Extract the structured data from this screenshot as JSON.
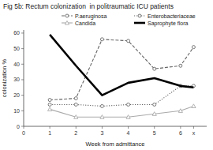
{
  "chart_data": {
    "type": "line",
    "title": "Fig 5b: Rectum colonization  in politraumatic ICU patients",
    "xlabel": "Week from admittance",
    "ylabel": "colonization %",
    "x": [
      1,
      2,
      3,
      4,
      5,
      6,
      6.5
    ],
    "xlim": [
      0,
      7.0
    ],
    "ylim": [
      0,
      62
    ],
    "xticks": [
      0,
      1,
      2,
      3,
      4,
      5,
      6,
      {
        "value": 6.5,
        "label": "x"
      }
    ],
    "yticks": [
      0,
      10,
      20,
      30,
      40,
      50,
      60
    ],
    "grid": false,
    "legend": "upper right",
    "series": [
      {
        "name": "P.aeruginosa",
        "color": "#666666",
        "line_style": "dashed",
        "marker": "circle",
        "values": [
          17,
          18,
          56,
          55,
          37,
          39,
          51
        ]
      },
      {
        "name": "Enterobacteriaceae",
        "color": "#666666",
        "line_style": "dotted",
        "marker": "circle",
        "values": [
          14,
          14,
          13,
          14,
          14,
          26,
          26
        ]
      },
      {
        "name": "Candida",
        "color": "#aaaaaa",
        "line_style": "solid",
        "marker": "triangle",
        "values": [
          11,
          6,
          6,
          6,
          8,
          10,
          13
        ]
      },
      {
        "name": "Saprophyte flora",
        "color": "#000000",
        "line_style": "solid",
        "marker": "none",
        "values": [
          59,
          39,
          20,
          28,
          31,
          26,
          25
        ]
      }
    ]
  }
}
